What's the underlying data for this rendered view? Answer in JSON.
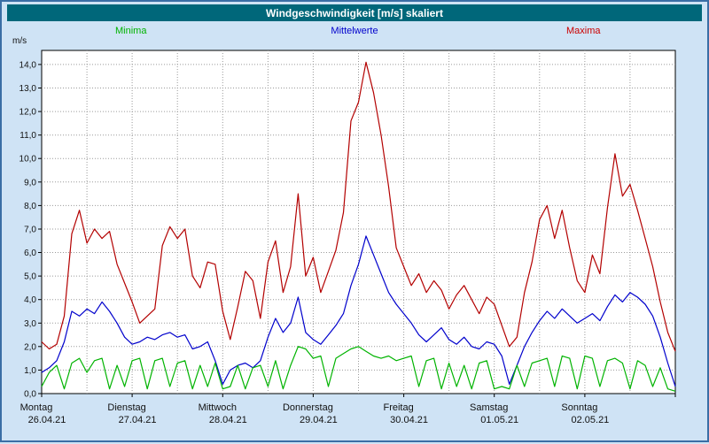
{
  "window": {
    "title": "Windgeschwindigkeit [m/s] skaliert"
  },
  "legend": {
    "minima": "Minima",
    "mittelwerte": "Mittelwerte",
    "maxima": "Maxima"
  },
  "colors": {
    "background": "#cfe3f5",
    "header": "#00677a",
    "grid": "#9a9a9a",
    "minima": "#00b300",
    "mittelwerte": "#0000cc",
    "maxima": "#b30000",
    "legend_maxima_label": "#cc0000"
  },
  "chart_data": {
    "type": "line",
    "title": "Windgeschwindigkeit [m/s] skaliert",
    "xlabel": "",
    "ylabel": "m/s",
    "ylim": [
      0,
      14.6
    ],
    "grid": true,
    "legend_position": "top",
    "sample_interval_hours": 2,
    "points_per_day": 12,
    "y_ticks": [
      "0,0",
      "1,0",
      "2,0",
      "3,0",
      "4,0",
      "5,0",
      "6,0",
      "7,0",
      "8,0",
      "9,0",
      "10,0",
      "11,0",
      "12,0",
      "13,0",
      "14,0"
    ],
    "x_days": [
      {
        "name": "Montag",
        "date": "26.04.21"
      },
      {
        "name": "Dienstag",
        "date": "27.04.21"
      },
      {
        "name": "Mittwoch",
        "date": "28.04.21"
      },
      {
        "name": "Donnerstag",
        "date": "29.04.21"
      },
      {
        "name": "Freitag",
        "date": "30.04.21"
      },
      {
        "name": "Samstag",
        "date": "01.05.21"
      },
      {
        "name": "Sonntag",
        "date": "02.05.21"
      }
    ],
    "series": [
      {
        "name": "Maxima",
        "color": "#b30000",
        "values": [
          2.2,
          1.9,
          2.1,
          3.3,
          6.8,
          7.8,
          6.4,
          7.0,
          6.6,
          6.9,
          5.5,
          4.7,
          3.9,
          3.0,
          3.3,
          3.6,
          6.3,
          7.1,
          6.6,
          7.0,
          5.0,
          4.5,
          5.6,
          5.5,
          3.5,
          2.3,
          3.7,
          5.2,
          4.8,
          3.2,
          5.6,
          6.5,
          4.3,
          5.4,
          8.5,
          5.0,
          5.8,
          4.3,
          5.2,
          6.1,
          7.7,
          11.6,
          12.4,
          14.1,
          12.8,
          11.0,
          8.8,
          6.2,
          5.4,
          4.6,
          5.1,
          4.3,
          4.8,
          4.4,
          3.6,
          4.2,
          4.6,
          4.0,
          3.4,
          4.1,
          3.8,
          2.9,
          2.0,
          2.4,
          4.3,
          5.6,
          7.4,
          8.0,
          6.6,
          7.8,
          6.2,
          4.8,
          4.3,
          5.9,
          5.1,
          7.9,
          10.2,
          8.4,
          8.9,
          7.8,
          6.6,
          5.4,
          3.9,
          2.6,
          1.8
        ]
      },
      {
        "name": "Mittelwerte",
        "color": "#0000cc",
        "values": [
          0.9,
          1.1,
          1.4,
          2.2,
          3.5,
          3.3,
          3.6,
          3.4,
          3.9,
          3.5,
          3.0,
          2.4,
          2.1,
          2.2,
          2.4,
          2.3,
          2.5,
          2.6,
          2.4,
          2.5,
          1.9,
          2.0,
          2.2,
          1.4,
          0.4,
          1.0,
          1.2,
          1.3,
          1.1,
          1.4,
          2.4,
          3.2,
          2.6,
          3.0,
          4.1,
          2.6,
          2.3,
          2.1,
          2.5,
          2.9,
          3.4,
          4.6,
          5.5,
          6.7,
          5.9,
          5.1,
          4.3,
          3.8,
          3.4,
          3.0,
          2.5,
          2.2,
          2.5,
          2.8,
          2.3,
          2.1,
          2.4,
          2.0,
          1.9,
          2.2,
          2.1,
          1.6,
          0.4,
          1.2,
          2.0,
          2.6,
          3.1,
          3.5,
          3.2,
          3.6,
          3.3,
          3.0,
          3.2,
          3.4,
          3.1,
          3.7,
          4.2,
          3.9,
          4.3,
          4.1,
          3.8,
          3.3,
          2.4,
          1.3,
          0.3
        ]
      },
      {
        "name": "Minima",
        "color": "#00b300",
        "values": [
          0.3,
          0.9,
          1.2,
          0.2,
          1.3,
          1.5,
          0.9,
          1.4,
          1.5,
          0.2,
          1.2,
          0.3,
          1.4,
          1.5,
          0.2,
          1.4,
          1.5,
          0.3,
          1.3,
          1.4,
          0.2,
          1.2,
          0.3,
          1.3,
          0.2,
          0.3,
          1.2,
          0.2,
          1.1,
          1.2,
          0.3,
          1.4,
          0.2,
          1.2,
          2.0,
          1.9,
          1.5,
          1.6,
          0.3,
          1.5,
          1.7,
          1.9,
          2.0,
          1.8,
          1.6,
          1.5,
          1.6,
          1.4,
          1.5,
          1.6,
          0.3,
          1.4,
          1.5,
          0.2,
          1.3,
          0.3,
          1.2,
          0.2,
          1.3,
          1.4,
          0.2,
          0.3,
          0.2,
          1.2,
          0.3,
          1.3,
          1.4,
          1.5,
          0.3,
          1.6,
          1.5,
          0.2,
          1.6,
          1.5,
          0.3,
          1.4,
          1.5,
          1.3,
          0.2,
          1.4,
          1.2,
          0.3,
          1.1,
          0.2,
          0.1
        ]
      }
    ]
  }
}
